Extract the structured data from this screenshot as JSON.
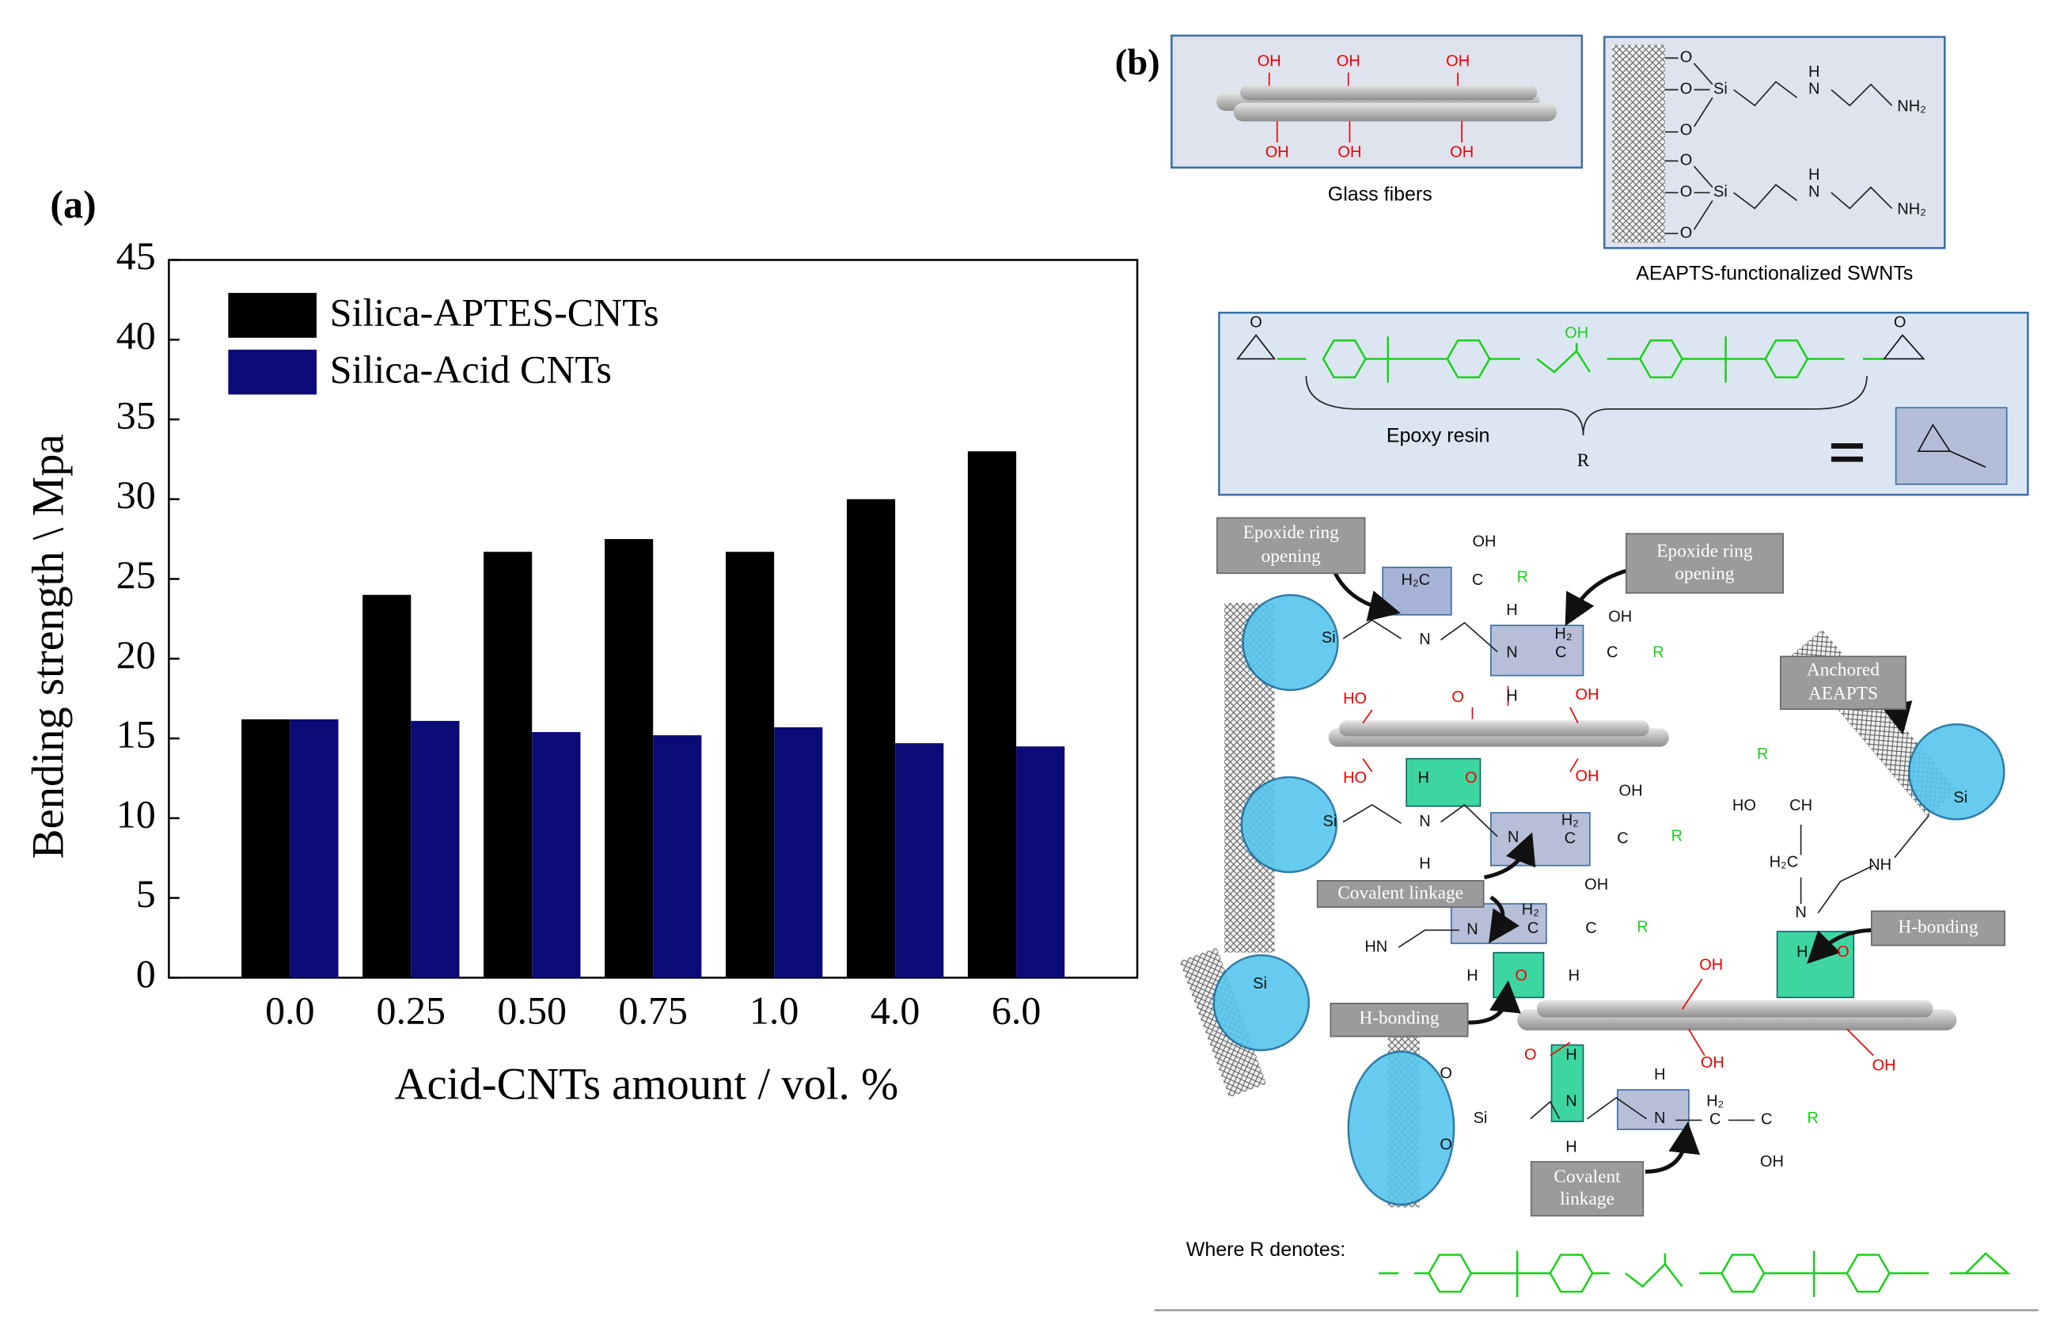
{
  "chart_data": {
    "type": "bar",
    "panel_label": "(a)",
    "xlabel": "Acid-CNTs amount / vol. %",
    "ylabel": "Bending strength \\ Mpa",
    "categories": [
      "0.0",
      "0.25",
      "0.50",
      "0.75",
      "1.0",
      "4.0",
      "6.0"
    ],
    "series": [
      {
        "name": "Silica-APTES-CNTs",
        "color": "#000000",
        "values": [
          16.2,
          24,
          26.7,
          27.5,
          26.7,
          30,
          33
        ]
      },
      {
        "name": "Silica-Acid CNTs",
        "color": "#0b0b78",
        "values": [
          16.2,
          16.1,
          15.4,
          15.2,
          15.7,
          14.7,
          14.5
        ]
      }
    ],
    "ylim": [
      0,
      45
    ],
    "yticks": [
      0,
      5,
      10,
      15,
      20,
      25,
      30,
      35,
      40,
      45
    ],
    "legend": "upper left"
  },
  "panel_b": {
    "label": "(b)",
    "captions": [
      "Glass fibers",
      "AEAPTS-functionalized SWNTs",
      "Epoxy resin",
      "R",
      "Where R denotes:"
    ],
    "callouts": [
      "Epoxide ring opening",
      "Epoxide ring opening",
      "Anchored AEAPTS",
      "Covalent linkage",
      "H-bonding",
      "H-bonding",
      "Covalent linkage"
    ],
    "chem_labels": [
      "OH",
      "OH",
      "OH",
      "OH",
      "OH",
      "OH",
      "O",
      "O",
      "O",
      "O",
      "O",
      "O",
      "Si",
      "Si",
      "H",
      "H",
      "N",
      "N",
      "NH₂",
      "NH₂",
      "OH",
      "O",
      "O",
      "OH",
      "H₂C",
      "C",
      "R",
      "Si",
      "N",
      "H",
      "N",
      "H₂",
      "C",
      "C",
      "OH",
      "R",
      "H",
      "O",
      "HO",
      "OH",
      "HO",
      "OH",
      "H",
      "O",
      "Si",
      "N",
      "H",
      "N",
      "H₂",
      "C",
      "C",
      "OH",
      "R",
      "R",
      "HO",
      "CH",
      "H₂C",
      "NH",
      "N",
      "Si",
      "HN",
      "N",
      "H₂",
      "C",
      "C",
      "OH",
      "R",
      "H",
      "O",
      "H",
      "Si",
      "H",
      "O",
      "OH",
      "OH",
      "OH",
      "O",
      "H",
      "N",
      "H",
      "O",
      "Si",
      "O",
      "H",
      "N",
      "H₂",
      "C",
      "C",
      "R",
      "OH"
    ]
  }
}
